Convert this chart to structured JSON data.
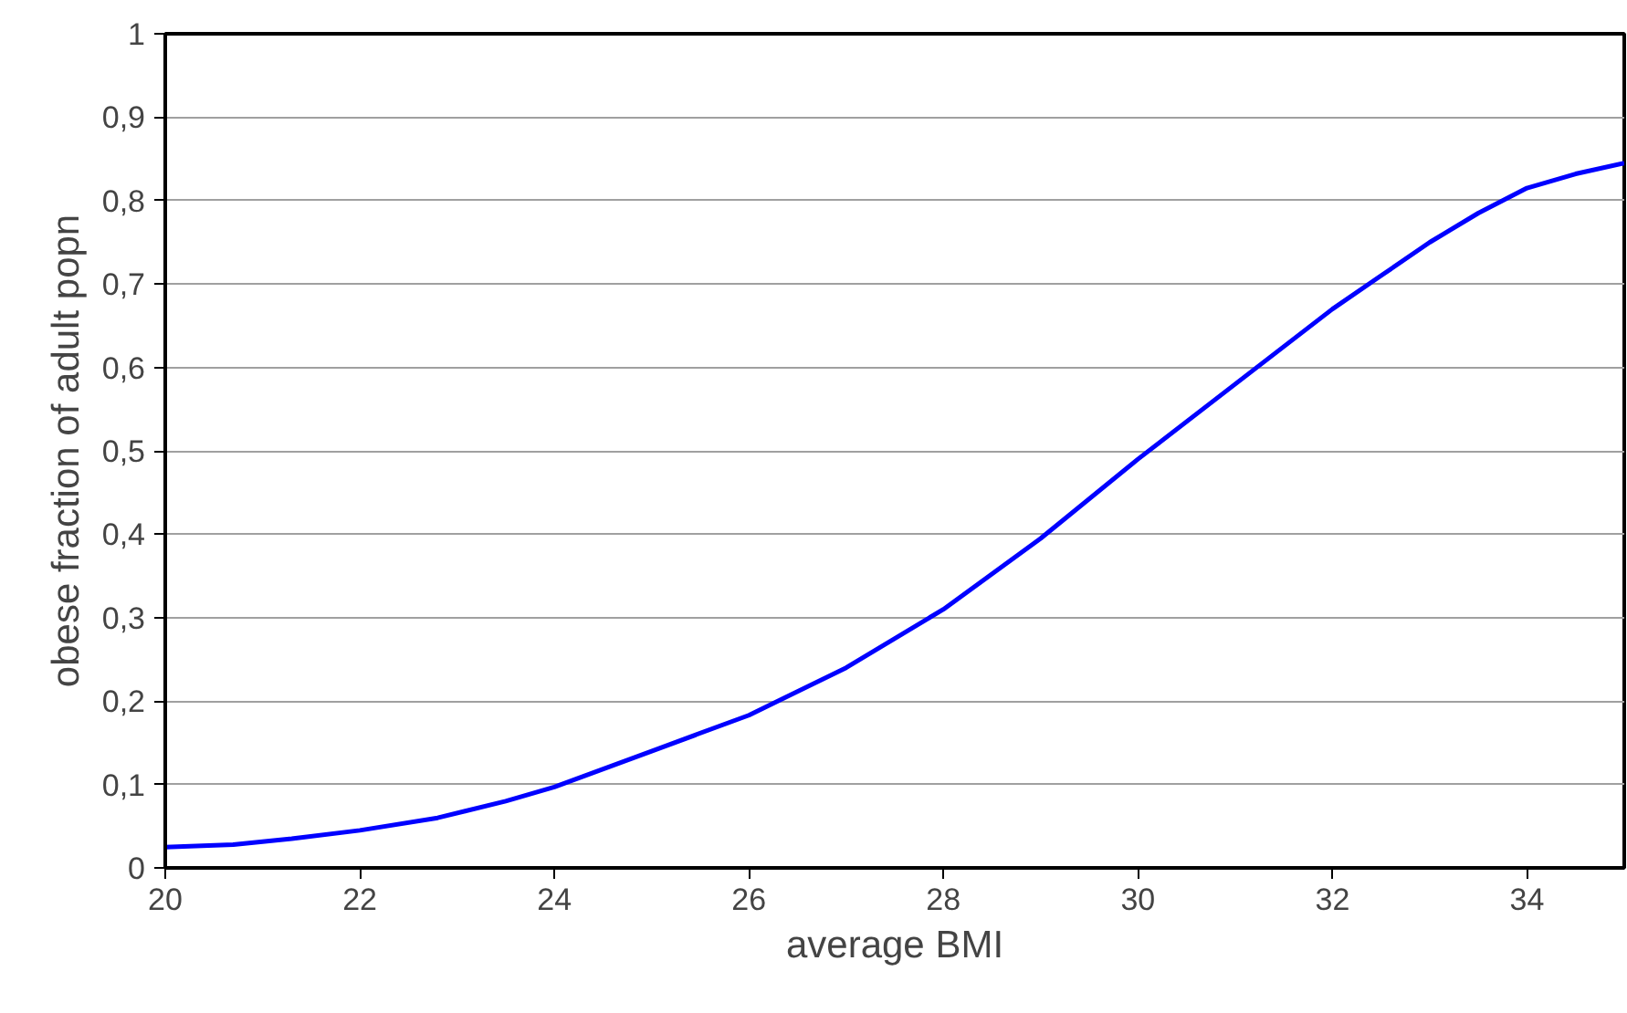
{
  "chart_data": {
    "type": "line",
    "xlabel": "average BMI",
    "ylabel": "obese fraction of adult popn",
    "x": [
      20,
      20.7,
      21.3,
      22,
      22.8,
      23.5,
      24,
      25,
      26,
      27,
      28,
      29,
      30,
      31,
      32,
      32.5,
      33,
      33.5,
      34,
      34.5,
      35
    ],
    "series": [
      {
        "color": "#0000ff",
        "values": [
          0.025,
          0.028,
          0.035,
          0.045,
          0.06,
          0.08,
          0.097,
          0.14,
          0.183,
          0.24,
          0.31,
          0.395,
          0.49,
          0.58,
          0.67,
          0.71,
          0.75,
          0.785,
          0.815,
          0.832,
          0.845
        ]
      }
    ],
    "xlim": [
      20,
      35
    ],
    "xticks": [
      20,
      22,
      24,
      26,
      28,
      30,
      32,
      34
    ],
    "ylim": [
      0,
      1
    ],
    "yticks": [
      0,
      {
        "value": 0.1,
        "label": "0,1"
      },
      {
        "value": 0.2,
        "label": "0,2"
      },
      {
        "value": 0.3,
        "label": "0,3"
      },
      {
        "value": 0.4,
        "label": "0,4"
      },
      {
        "value": 0.5,
        "label": "0,5"
      },
      {
        "value": 0.6,
        "label": "0,6"
      },
      {
        "value": 0.7,
        "label": "0,7"
      },
      {
        "value": 0.8,
        "label": "0,8"
      },
      {
        "value": 0.9,
        "label": "0,9"
      },
      1
    ],
    "grid": "y",
    "marker": "none",
    "line_style": "solid"
  }
}
